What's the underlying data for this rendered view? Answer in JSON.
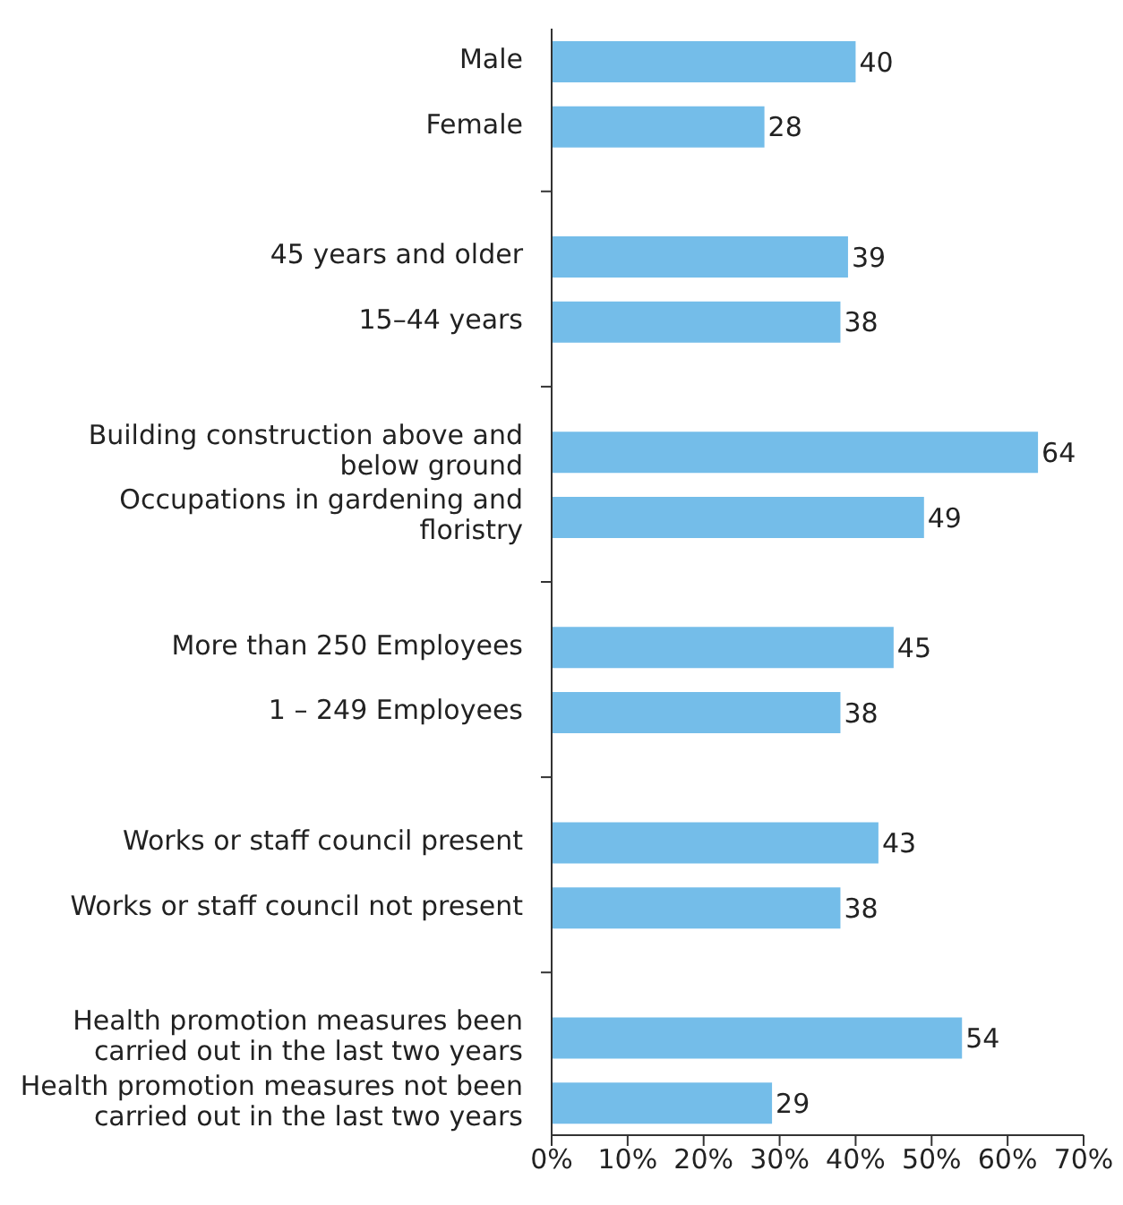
{
  "chart_data": {
    "type": "bar",
    "orientation": "horizontal",
    "categories": [
      "Male",
      "Female",
      null,
      "45 years and older",
      "15–44 years",
      null,
      "Building construction above and below ground",
      "Occupations in gardening and floristry",
      null,
      "More than 250 Employees",
      "1 – 249 Employees",
      null,
      "Works or staff council present",
      "Works or staff council not present",
      null,
      "Health promotion measures been carried out in the last two years",
      "Health promotion measures not been carried out in the last two years"
    ],
    "values": [
      40,
      28,
      null,
      39,
      38,
      null,
      64,
      49,
      null,
      45,
      38,
      null,
      43,
      38,
      null,
      54,
      29
    ],
    "color": "#74bde9",
    "xlim": [
      0,
      70
    ],
    "xticks": [
      {
        "value": 0,
        "label": "0%"
      },
      {
        "value": 10,
        "label": "10%"
      },
      {
        "value": 20,
        "label": "20%"
      },
      {
        "value": 30,
        "label": "30%"
      },
      {
        "value": 40,
        "label": "40%"
      },
      {
        "value": 50,
        "label": "50%"
      },
      {
        "value": 60,
        "label": "60%"
      },
      {
        "value": 70,
        "label": "70%"
      }
    ],
    "data_labels": true,
    "grid": false,
    "legend": false
  }
}
